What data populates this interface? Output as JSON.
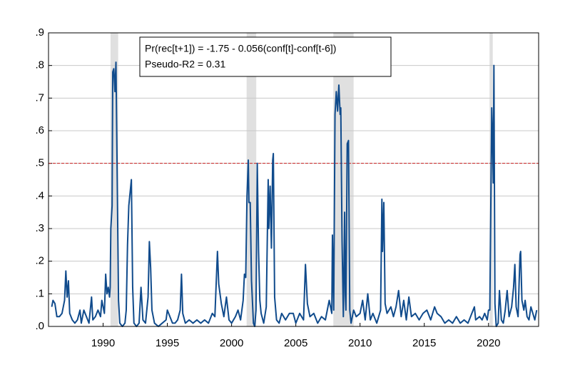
{
  "chart_data": {
    "type": "line",
    "annotations": [
      "Pr(rec[t+1]) = -1.75 - 0.056(conf[t]-conf[t-6])",
      "Pseudo-R2 = 0.31"
    ],
    "xlim": [
      1985.75,
      2023.9
    ],
    "xticks": [
      1990,
      1995,
      2000,
      2005,
      2010,
      2015,
      2020
    ],
    "ylim": [
      0,
      0.9
    ],
    "yticks": [
      {
        "value": 0,
        "label": ".0"
      },
      {
        "value": 0.1,
        "label": ".1"
      },
      {
        "value": 0.2,
        "label": ".2"
      },
      {
        "value": 0.3,
        "label": ".3"
      },
      {
        "value": 0.4,
        "label": ".4"
      },
      {
        "value": 0.5,
        "label": ".5"
      },
      {
        "value": 0.6,
        "label": ".6"
      },
      {
        "value": 0.7,
        "label": ".7"
      },
      {
        "value": 0.8,
        "label": ".8"
      },
      {
        "value": 0.9,
        "label": ".9"
      }
    ],
    "grid": true,
    "reference_line": {
      "value": 0.5,
      "color": "#cc2222"
    },
    "recessions": [
      [
        1990.58,
        1991.17
      ],
      [
        2001.17,
        2001.92
      ],
      [
        2007.92,
        2009.5
      ],
      [
        2020.08,
        2020.33
      ]
    ],
    "recession_color": "#e0e0e0",
    "x": [
      1986.0,
      1986.1,
      1986.25,
      1986.4,
      1986.6,
      1986.8,
      1987.0,
      1987.1,
      1987.2,
      1987.3,
      1987.4,
      1987.6,
      1987.8,
      1988.0,
      1988.2,
      1988.3,
      1988.5,
      1988.7,
      1988.9,
      1989.1,
      1989.2,
      1989.4,
      1989.6,
      1989.8,
      1989.9,
      1990.1,
      1990.2,
      1990.3,
      1990.4,
      1990.5,
      1990.55,
      1990.6,
      1990.7,
      1990.75,
      1990.83,
      1990.92,
      1991.0,
      1991.1,
      1991.2,
      1991.3,
      1991.5,
      1991.7,
      1991.8,
      1991.9,
      1992.0,
      1992.1,
      1992.2,
      1992.3,
      1992.4,
      1992.6,
      1992.8,
      1992.95,
      1993.1,
      1993.3,
      1993.5,
      1993.6,
      1993.7,
      1993.8,
      1994.0,
      1994.3,
      1994.6,
      1994.9,
      1995.0,
      1995.2,
      1995.4,
      1995.6,
      1995.8,
      1996.0,
      1996.1,
      1996.2,
      1996.4,
      1996.7,
      1997.0,
      1997.3,
      1997.6,
      1997.9,
      1998.2,
      1998.5,
      1998.7,
      1998.9,
      1999.0,
      1999.2,
      1999.4,
      1999.6,
      1999.8,
      2000.0,
      2000.3,
      2000.5,
      2000.7,
      2000.9,
      2001.0,
      2001.1,
      2001.2,
      2001.3,
      2001.35,
      2001.45,
      2001.55,
      2001.7,
      2001.8,
      2001.9,
      2002.0,
      2002.1,
      2002.2,
      2002.3,
      2002.5,
      2002.7,
      2002.85,
      2002.9,
      2003.0,
      2003.1,
      2003.2,
      2003.25,
      2003.35,
      2003.5,
      2003.7,
      2003.9,
      2004.2,
      2004.5,
      2004.8,
      2005.0,
      2005.3,
      2005.6,
      2005.75,
      2005.9,
      2006.1,
      2006.4,
      2006.7,
      2007.0,
      2007.3,
      2007.6,
      2007.8,
      2007.85,
      2007.95,
      2008.05,
      2008.15,
      2008.25,
      2008.35,
      2008.45,
      2008.5,
      2008.6,
      2008.7,
      2008.8,
      2008.85,
      2008.9,
      2009.0,
      2009.1,
      2009.2,
      2009.3,
      2009.5,
      2009.7,
      2010.0,
      2010.2,
      2010.4,
      2010.6,
      2010.8,
      2011.0,
      2011.3,
      2011.6,
      2011.7,
      2011.75,
      2011.85,
      2011.95,
      2012.1,
      2012.4,
      2012.6,
      2012.8,
      2013.0,
      2013.2,
      2013.4,
      2013.6,
      2013.8,
      2014.0,
      2014.3,
      2014.6,
      2014.9,
      2015.2,
      2015.5,
      2015.8,
      2016.0,
      2016.3,
      2016.6,
      2016.9,
      2017.2,
      2017.5,
      2017.8,
      2018.1,
      2018.4,
      2018.7,
      2018.9,
      2019.0,
      2019.3,
      2019.5,
      2019.7,
      2019.9,
      2020.0,
      2020.1,
      2020.2,
      2020.25,
      2020.3,
      2020.37,
      2020.42,
      2020.5,
      2020.6,
      2020.75,
      2020.85,
      2021.0,
      2021.15,
      2021.3,
      2021.45,
      2021.6,
      2021.8,
      2021.95,
      2022.05,
      2022.15,
      2022.3,
      2022.45,
      2022.5,
      2022.6,
      2022.75,
      2022.85,
      2023.0,
      2023.15,
      2023.3,
      2023.45,
      2023.6,
      2023.75
    ],
    "series": [
      {
        "color": "#104b8c",
        "values": [
          0.06,
          0.08,
          0.07,
          0.03,
          0.03,
          0.04,
          0.08,
          0.17,
          0.09,
          0.14,
          0.04,
          0.02,
          0.01,
          0.02,
          0.05,
          0.01,
          0.05,
          0.03,
          0.01,
          0.09,
          0.02,
          0.03,
          0.05,
          0.03,
          0.08,
          0.04,
          0.16,
          0.1,
          0.12,
          0.09,
          0.12,
          0.3,
          0.37,
          0.78,
          0.79,
          0.72,
          0.81,
          0.45,
          0.08,
          0.01,
          0.0,
          0.01,
          0.05,
          0.25,
          0.37,
          0.41,
          0.45,
          0.12,
          0.01,
          0.0,
          0.01,
          0.12,
          0.02,
          0.01,
          0.09,
          0.26,
          0.18,
          0.05,
          0.01,
          0.0,
          0.01,
          0.02,
          0.05,
          0.03,
          0.01,
          0.01,
          0.02,
          0.05,
          0.16,
          0.04,
          0.01,
          0.02,
          0.01,
          0.02,
          0.01,
          0.02,
          0.01,
          0.04,
          0.03,
          0.23,
          0.13,
          0.07,
          0.03,
          0.09,
          0.02,
          0.01,
          0.03,
          0.05,
          0.02,
          0.08,
          0.16,
          0.15,
          0.4,
          0.51,
          0.38,
          0.38,
          0.14,
          0.01,
          0.0,
          0.05,
          0.5,
          0.23,
          0.08,
          0.04,
          0.01,
          0.06,
          0.45,
          0.3,
          0.43,
          0.24,
          0.51,
          0.53,
          0.09,
          0.02,
          0.01,
          0.04,
          0.02,
          0.04,
          0.04,
          0.01,
          0.04,
          0.02,
          0.19,
          0.07,
          0.03,
          0.04,
          0.01,
          0.03,
          0.02,
          0.08,
          0.04,
          0.28,
          0.05,
          0.65,
          0.72,
          0.66,
          0.74,
          0.65,
          0.67,
          0.26,
          0.03,
          0.35,
          0.1,
          0.05,
          0.56,
          0.57,
          0.05,
          0.01,
          0.05,
          0.03,
          0.04,
          0.08,
          0.02,
          0.1,
          0.02,
          0.04,
          0.01,
          0.05,
          0.39,
          0.23,
          0.38,
          0.07,
          0.04,
          0.06,
          0.03,
          0.06,
          0.11,
          0.03,
          0.08,
          0.02,
          0.09,
          0.03,
          0.04,
          0.02,
          0.04,
          0.05,
          0.02,
          0.06,
          0.04,
          0.03,
          0.01,
          0.02,
          0.01,
          0.03,
          0.01,
          0.02,
          0.01,
          0.04,
          0.06,
          0.02,
          0.03,
          0.02,
          0.04,
          0.02,
          0.05,
          0.05,
          0.46,
          0.67,
          0.6,
          0.44,
          0.8,
          0.07,
          0.0,
          0.01,
          0.11,
          0.02,
          0.01,
          0.05,
          0.11,
          0.03,
          0.06,
          0.12,
          0.19,
          0.06,
          0.03,
          0.22,
          0.23,
          0.08,
          0.05,
          0.08,
          0.03,
          0.02,
          0.06,
          0.04,
          0.02,
          0.05
        ]
      }
    ]
  }
}
